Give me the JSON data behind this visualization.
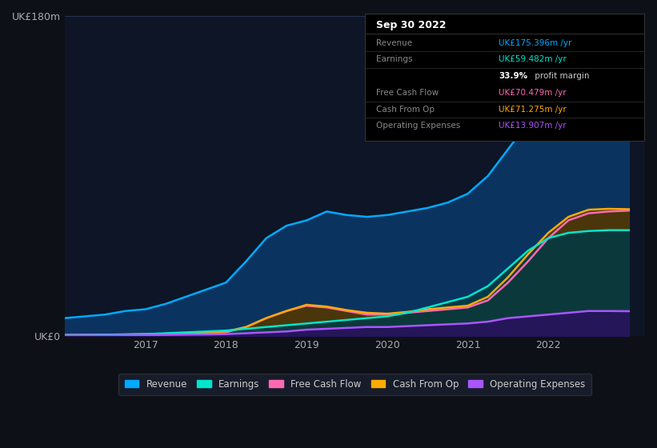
{
  "bg_color": "#0d1117",
  "chart_bg": "#0d1526",
  "ylabel": "UK£180m",
  "y0label": "UK£0",
  "ylim": [
    0,
    180
  ],
  "xlim": [
    2016.0,
    2023.2
  ],
  "xticks": [
    2017,
    2018,
    2019,
    2020,
    2021,
    2022
  ],
  "grid_color": "#2a3a5a",
  "series": {
    "Revenue": {
      "color": "#00aaff",
      "fill_color": "#0a3a6a",
      "x": [
        2016.0,
        2016.25,
        2016.5,
        2016.75,
        2017.0,
        2017.25,
        2017.5,
        2017.75,
        2018.0,
        2018.25,
        2018.5,
        2018.75,
        2019.0,
        2019.25,
        2019.5,
        2019.75,
        2020.0,
        2020.25,
        2020.5,
        2020.75,
        2021.0,
        2021.25,
        2021.5,
        2021.75,
        2022.0,
        2022.25,
        2022.5,
        2022.75,
        2023.0
      ],
      "y": [
        10,
        11,
        12,
        14,
        15,
        18,
        22,
        26,
        30,
        42,
        55,
        62,
        65,
        70,
        68,
        67,
        68,
        70,
        72,
        75,
        80,
        90,
        105,
        120,
        140,
        162,
        172,
        175,
        175
      ]
    },
    "Earnings": {
      "color": "#00e5cc",
      "fill_color": "#003a44",
      "x": [
        2016.0,
        2016.25,
        2016.5,
        2016.75,
        2017.0,
        2017.25,
        2017.5,
        2017.75,
        2018.0,
        2018.25,
        2018.5,
        2018.75,
        2019.0,
        2019.25,
        2019.5,
        2019.75,
        2020.0,
        2020.25,
        2020.5,
        2020.75,
        2021.0,
        2021.25,
        2021.5,
        2021.75,
        2022.0,
        2022.25,
        2022.5,
        2022.75,
        2023.0
      ],
      "y": [
        0.5,
        0.6,
        0.7,
        0.8,
        1.0,
        1.5,
        2.0,
        2.5,
        3.0,
        4.0,
        5.0,
        6.0,
        7.0,
        8.0,
        9.0,
        10.0,
        11.0,
        13.0,
        16.0,
        19.0,
        22.0,
        28.0,
        38.0,
        48.0,
        55.0,
        58.0,
        59.0,
        59.5,
        59.5
      ]
    },
    "Free Cash Flow": {
      "color": "#ff69b4",
      "fill_color": "#5a2040",
      "x": [
        2016.0,
        2016.25,
        2016.5,
        2016.75,
        2017.0,
        2017.25,
        2017.5,
        2017.75,
        2018.0,
        2018.25,
        2018.5,
        2018.75,
        2019.0,
        2019.25,
        2019.5,
        2019.75,
        2020.0,
        2020.25,
        2020.5,
        2020.75,
        2021.0,
        2021.25,
        2021.5,
        2021.75,
        2022.0,
        2022.25,
        2022.5,
        2022.75,
        2023.0
      ],
      "y": [
        0.2,
        0.3,
        0.4,
        0.5,
        0.6,
        0.8,
        1.0,
        1.5,
        2.0,
        5.0,
        10.0,
        14.0,
        17.0,
        16.0,
        14.0,
        12.0,
        12.0,
        13.0,
        14.0,
        15.0,
        16.0,
        20.0,
        30.0,
        42.0,
        55.0,
        65.0,
        69.0,
        70.0,
        70.5
      ]
    },
    "Cash From Op": {
      "color": "#ffaa00",
      "fill_color": "#4a3a00",
      "x": [
        2016.0,
        2016.25,
        2016.5,
        2016.75,
        2017.0,
        2017.25,
        2017.5,
        2017.75,
        2018.0,
        2018.25,
        2018.5,
        2018.75,
        2019.0,
        2019.25,
        2019.5,
        2019.75,
        2020.0,
        2020.25,
        2020.5,
        2020.75,
        2021.0,
        2021.25,
        2021.5,
        2021.75,
        2022.0,
        2022.25,
        2022.5,
        2022.75,
        2023.0
      ],
      "y": [
        0.5,
        0.6,
        0.7,
        0.8,
        1.0,
        1.2,
        1.5,
        2.0,
        2.5,
        5.0,
        10.0,
        14.0,
        17.5,
        16.5,
        14.5,
        13.0,
        12.5,
        13.5,
        15.0,
        16.0,
        17.0,
        22.0,
        33.0,
        46.0,
        58.0,
        67.0,
        71.0,
        71.5,
        71.3
      ]
    },
    "Operating Expenses": {
      "color": "#aa55ff",
      "fill_color": "#2a1060",
      "x": [
        2016.0,
        2016.25,
        2016.5,
        2016.75,
        2017.0,
        2017.25,
        2017.5,
        2017.75,
        2018.0,
        2018.25,
        2018.5,
        2018.75,
        2019.0,
        2019.25,
        2019.5,
        2019.75,
        2020.0,
        2020.25,
        2020.5,
        2020.75,
        2021.0,
        2021.25,
        2021.5,
        2021.75,
        2022.0,
        2022.25,
        2022.5,
        2022.75,
        2023.0
      ],
      "y": [
        0.2,
        0.3,
        0.3,
        0.4,
        0.5,
        0.6,
        0.7,
        0.8,
        1.0,
        1.5,
        2.0,
        2.5,
        3.5,
        4.0,
        4.5,
        5.0,
        5.0,
        5.5,
        6.0,
        6.5,
        7.0,
        8.0,
        10.0,
        11.0,
        12.0,
        13.0,
        14.0,
        14.0,
        13.9
      ]
    }
  },
  "info_box": {
    "title": "Sep 30 2022",
    "rows": [
      {
        "label": "Revenue",
        "value": "UK£175.396m /yr",
        "value_color": "#00aaff",
        "bold_part": ""
      },
      {
        "label": "Earnings",
        "value": "UK£59.482m /yr",
        "value_color": "#00e5cc",
        "bold_part": ""
      },
      {
        "label": "",
        "value": " profit margin",
        "value_color": "#cccccc",
        "bold_part": "33.9%"
      },
      {
        "label": "Free Cash Flow",
        "value": "UK£70.479m /yr",
        "value_color": "#ff69b4",
        "bold_part": ""
      },
      {
        "label": "Cash From Op",
        "value": "UK£71.275m /yr",
        "value_color": "#ffaa00",
        "bold_part": ""
      },
      {
        "label": "Operating Expenses",
        "value": "UK£13.907m /yr",
        "value_color": "#aa55ff",
        "bold_part": ""
      }
    ]
  },
  "legend": [
    {
      "label": "Revenue",
      "color": "#00aaff"
    },
    {
      "label": "Earnings",
      "color": "#00e5cc"
    },
    {
      "label": "Free Cash Flow",
      "color": "#ff69b4"
    },
    {
      "label": "Cash From Op",
      "color": "#ffaa00"
    },
    {
      "label": "Operating Expenses",
      "color": "#aa55ff"
    }
  ]
}
